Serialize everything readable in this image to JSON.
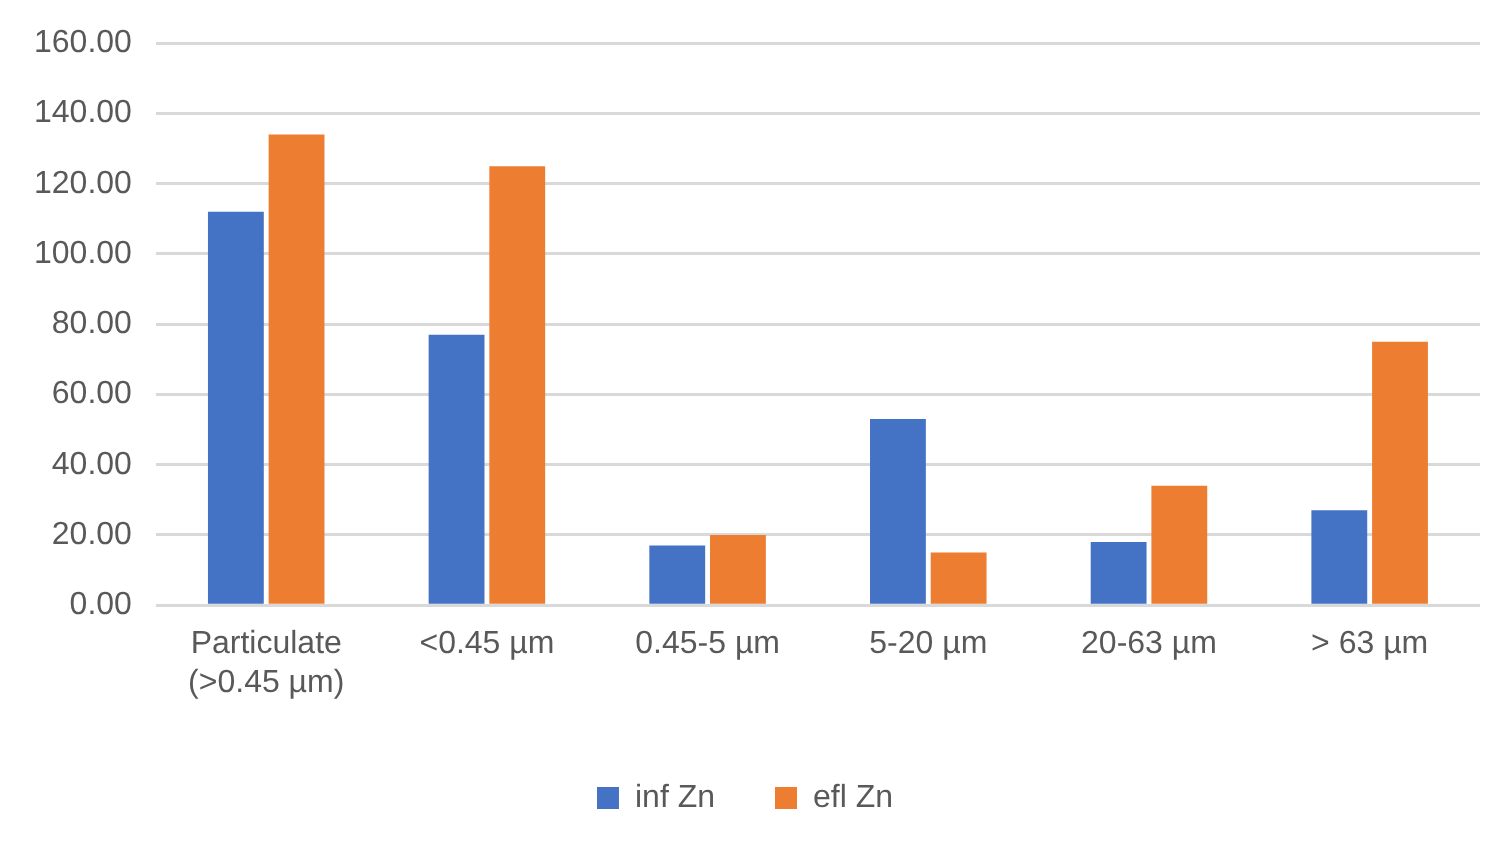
{
  "chart_data": {
    "type": "bar",
    "categories": [
      "Particulate (>0.45 µm)",
      "<0.45 µm",
      "0.45-5 µm",
      "5-20 µm",
      "20-63 µm",
      "> 63 µm"
    ],
    "series": [
      {
        "name": "inf Zn",
        "color": "#4472c4",
        "values": [
          112,
          77,
          17,
          53,
          18,
          27
        ]
      },
      {
        "name": "efl Zn",
        "color": "#ed7d31",
        "values": [
          134,
          125,
          20,
          15,
          34,
          75
        ]
      }
    ],
    "ylim": [
      0,
      160
    ],
    "yticks": [
      {
        "value": 0,
        "label": "0.00"
      },
      {
        "value": 20,
        "label": "20.00"
      },
      {
        "value": 40,
        "label": "40.00"
      },
      {
        "value": 60,
        "label": "60.00"
      },
      {
        "value": 80,
        "label": "80.00"
      },
      {
        "value": 100,
        "label": "100.00"
      },
      {
        "value": 120,
        "label": "120.00"
      },
      {
        "value": 140,
        "label": "140.00"
      },
      {
        "value": 160,
        "label": "160.00"
      }
    ],
    "grid": "y",
    "legend": "bottom"
  }
}
